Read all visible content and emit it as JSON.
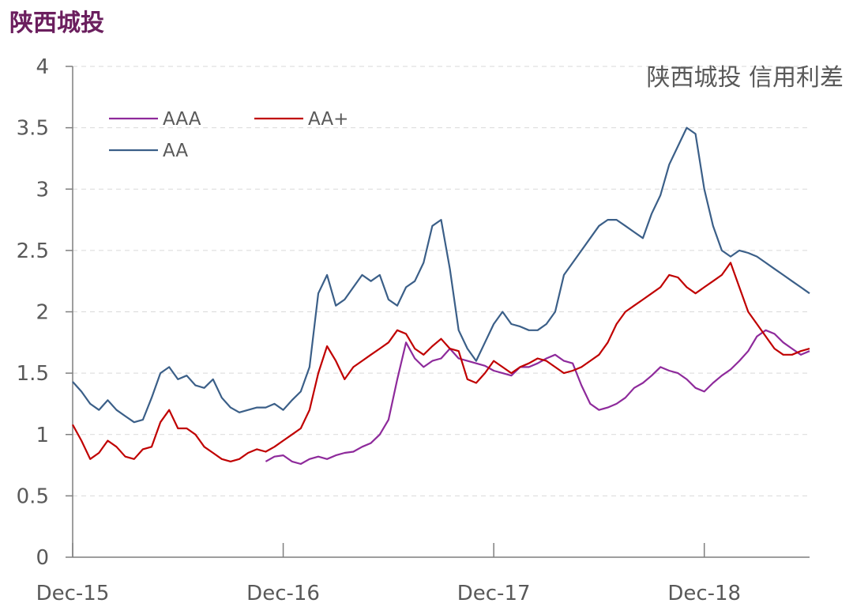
{
  "header": {
    "title": "陕西城投"
  },
  "chart_data": {
    "type": "line",
    "title": "陕西城投 信用利差",
    "xlabel": "",
    "ylabel": "",
    "ylim": [
      0,
      4
    ],
    "yticks": [
      "0",
      "0.5",
      "1",
      "1.5",
      "2",
      "2.5",
      "3",
      "3.5",
      "4"
    ],
    "xrange": [
      0,
      42
    ],
    "xticks": [
      {
        "label": "Dec-15",
        "x": 0
      },
      {
        "label": "Dec-16",
        "x": 12
      },
      {
        "label": "Dec-17",
        "x": 24
      },
      {
        "label": "Dec-18",
        "x": 36
      }
    ],
    "x": [
      0,
      0.5,
      1,
      1.5,
      2,
      2.5,
      3,
      3.5,
      4,
      4.5,
      5,
      5.5,
      6,
      6.5,
      7,
      7.5,
      8,
      8.5,
      9,
      9.5,
      10,
      10.5,
      11,
      11.5,
      12,
      12.5,
      13,
      13.5,
      14,
      14.5,
      15,
      15.5,
      16,
      16.5,
      17,
      17.5,
      18,
      18.5,
      19,
      19.5,
      20,
      20.5,
      21,
      21.5,
      22,
      22.5,
      23,
      23.5,
      24,
      24.5,
      25,
      25.5,
      26,
      26.5,
      27,
      27.5,
      28,
      28.5,
      29,
      29.5,
      30,
      30.5,
      31,
      31.5,
      32,
      32.5,
      33,
      33.5,
      34,
      34.5,
      35,
      35.5,
      36,
      36.5,
      37,
      37.5,
      38,
      38.5,
      39,
      39.5,
      40,
      40.5,
      41,
      41.5,
      42
    ],
    "legend": "top-left",
    "series": [
      {
        "name": "AAA",
        "color": "#8e2a9b",
        "values": [
          null,
          null,
          null,
          null,
          null,
          null,
          null,
          null,
          null,
          null,
          null,
          null,
          null,
          null,
          null,
          null,
          null,
          null,
          null,
          null,
          null,
          null,
          0.78,
          0.82,
          0.83,
          0.78,
          0.76,
          0.8,
          0.82,
          0.8,
          0.83,
          0.85,
          0.86,
          0.9,
          0.93,
          1.0,
          1.12,
          1.45,
          1.75,
          1.62,
          1.55,
          1.6,
          1.62,
          1.7,
          1.62,
          1.6,
          1.58,
          1.56,
          1.52,
          1.5,
          1.48,
          1.55,
          1.55,
          1.58,
          1.62,
          1.65,
          1.6,
          1.58,
          1.4,
          1.25,
          1.2,
          1.22,
          1.25,
          1.3,
          1.38,
          1.42,
          1.48,
          1.55,
          1.52,
          1.5,
          1.45,
          1.38,
          1.35,
          1.42,
          1.48,
          1.53,
          1.6,
          1.68,
          1.8,
          1.85,
          1.82,
          1.75,
          1.7,
          1.65,
          1.68
        ]
      },
      {
        "name": "AA+",
        "color": "#c00000",
        "values": [
          1.08,
          0.95,
          0.8,
          0.85,
          0.95,
          0.9,
          0.82,
          0.8,
          0.88,
          0.9,
          1.1,
          1.2,
          1.05,
          1.05,
          1.0,
          0.9,
          0.85,
          0.8,
          0.78,
          0.8,
          0.85,
          0.88,
          0.86,
          0.9,
          0.95,
          1.0,
          1.05,
          1.2,
          1.5,
          1.72,
          1.6,
          1.45,
          1.55,
          1.6,
          1.65,
          1.7,
          1.75,
          1.85,
          1.82,
          1.7,
          1.65,
          1.72,
          1.78,
          1.7,
          1.68,
          1.45,
          1.42,
          1.5,
          1.6,
          1.55,
          1.5,
          1.55,
          1.58,
          1.62,
          1.6,
          1.55,
          1.5,
          1.52,
          1.55,
          1.6,
          1.65,
          1.75,
          1.9,
          2.0,
          2.05,
          2.1,
          2.15,
          2.2,
          2.3,
          2.28,
          2.2,
          2.15,
          2.2,
          2.25,
          2.3,
          2.4,
          2.2,
          2.0,
          1.9,
          1.8,
          1.7,
          1.65,
          1.65,
          1.68,
          1.7
        ]
      },
      {
        "name": "AA",
        "color": "#3b5f88",
        "values": [
          1.43,
          1.35,
          1.25,
          1.2,
          1.28,
          1.2,
          1.15,
          1.1,
          1.12,
          1.3,
          1.5,
          1.55,
          1.45,
          1.48,
          1.4,
          1.38,
          1.45,
          1.3,
          1.22,
          1.18,
          1.2,
          1.22,
          1.22,
          1.25,
          1.2,
          1.28,
          1.35,
          1.55,
          2.15,
          2.3,
          2.05,
          2.1,
          2.2,
          2.3,
          2.25,
          2.3,
          2.1,
          2.05,
          2.2,
          2.25,
          2.4,
          2.7,
          2.75,
          2.35,
          1.85,
          1.7,
          1.6,
          1.75,
          1.9,
          2.0,
          1.9,
          1.88,
          1.85,
          1.85,
          1.9,
          2.0,
          2.3,
          2.4,
          2.5,
          2.6,
          2.7,
          2.75,
          2.75,
          2.7,
          2.65,
          2.6,
          2.8,
          2.95,
          3.2,
          3.35,
          3.5,
          3.45,
          3.0,
          2.7,
          2.5,
          2.45,
          2.5,
          2.48,
          2.45,
          2.4,
          2.35,
          2.3,
          2.25,
          2.2,
          2.15
        ]
      }
    ]
  }
}
